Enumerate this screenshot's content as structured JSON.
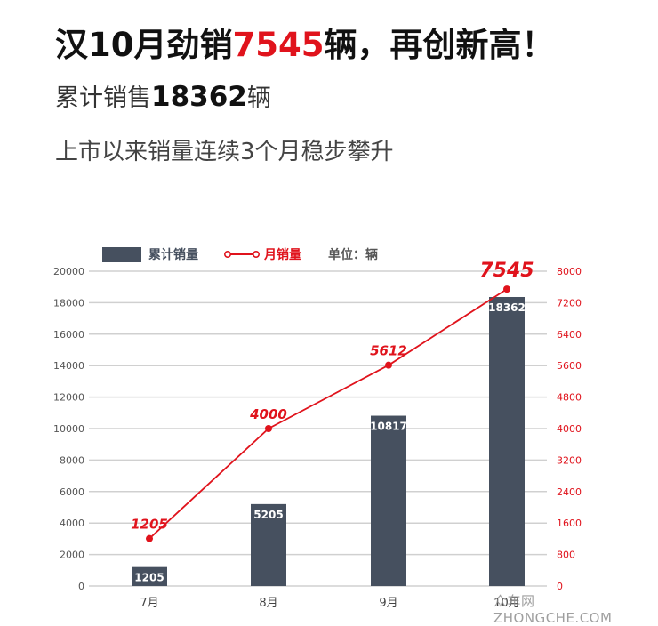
{
  "header": {
    "headline_prefix": "汉10月劲销",
    "headline_highlight": "7545",
    "headline_suffix": "辆，再创新高！",
    "subtitle_prefix": "累计销售",
    "subtitle_value": "18362",
    "subtitle_suffix": "辆",
    "tagline": "上市以来销量连续3个月稳步攀升"
  },
  "legend": {
    "bar_label": "累计销量",
    "line_label": "月销量",
    "unit_label": "单位：辆"
  },
  "watermark": "众车网 ZHONGCHE.COM",
  "colors": {
    "bar": "#46505f",
    "line": "#e0131c",
    "grid": "#d0d0d0",
    "left_axis_text": "#555555",
    "right_axis_text": "#e0131c"
  },
  "chart_data": {
    "type": "bar",
    "title": "汉10月劲销7545辆，再创新高！",
    "categories": [
      "7月",
      "8月",
      "9月",
      "10月"
    ],
    "series": [
      {
        "name": "累计销量",
        "type": "bar",
        "axis": "left",
        "values": [
          1205,
          5205,
          10817,
          18362
        ]
      },
      {
        "name": "月销量",
        "type": "line",
        "axis": "right",
        "values": [
          1205,
          4000,
          5612,
          7545
        ]
      }
    ],
    "left_axis": {
      "ylim": [
        0,
        20000
      ],
      "ticks": [
        0,
        2000,
        4000,
        6000,
        8000,
        10000,
        12000,
        14000,
        16000,
        18000,
        20000
      ]
    },
    "right_axis": {
      "ylim": [
        0,
        8000
      ],
      "ticks": [
        0,
        800,
        1600,
        2400,
        3200,
        4000,
        4800,
        5600,
        6400,
        7200,
        8000
      ]
    },
    "xlabel": "",
    "ylabel": "单位：辆",
    "grid": true,
    "legend_position": "top"
  }
}
